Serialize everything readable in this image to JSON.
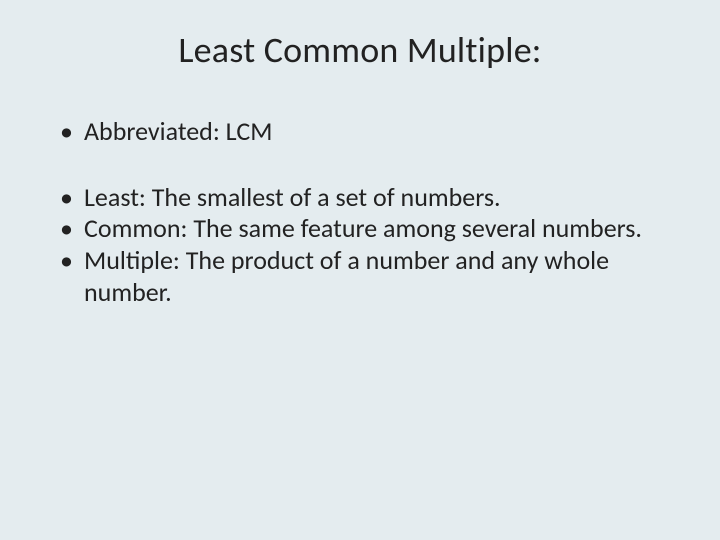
{
  "slide": {
    "background_color": "#e4ecef",
    "text_color": "#222222",
    "title": {
      "text": "Least Common Multiple:",
      "fontsize": 36,
      "fontweight": "400"
    },
    "body_fontsize": 26,
    "line_height": 1.22,
    "bullets": [
      "Abbreviated: LCM",
      "Least: The smallest of a set of numbers.",
      "Common: The same feature among several numbers.",
      "Multiple: The product of a number and any whole number."
    ]
  }
}
